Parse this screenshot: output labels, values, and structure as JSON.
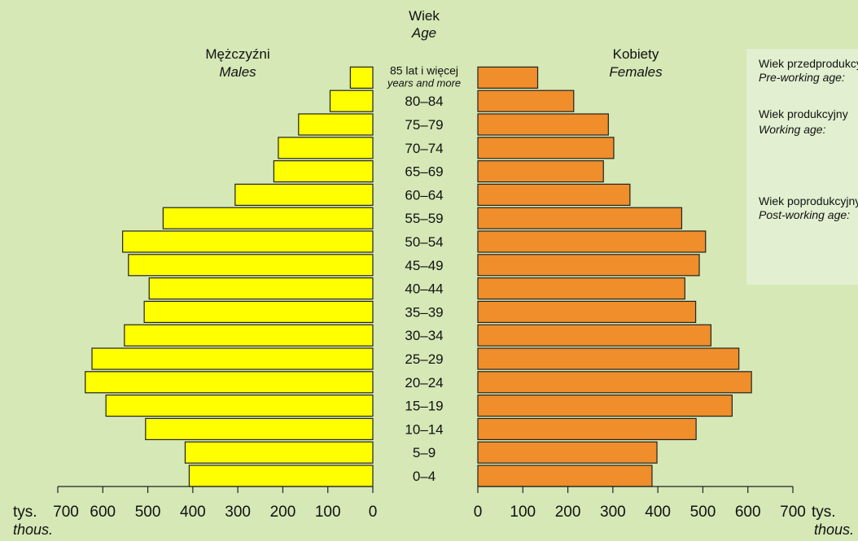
{
  "chart_data": {
    "type": "bar",
    "orientation": "horizontal",
    "subtype": "population-pyramid",
    "title": "Wiek",
    "title_en": "Age",
    "categories": [
      "0–4",
      "5–9",
      "10–14",
      "15–19",
      "20–24",
      "25–29",
      "30–34",
      "35–39",
      "40–44",
      "45–49",
      "50–54",
      "55–59",
      "60–64",
      "65–69",
      "70–74",
      "75–79",
      "80–84",
      "85 lat i więcej"
    ],
    "top_category_en": "years and more",
    "series": [
      {
        "name": "Mężczyźni",
        "name_en": "Males",
        "color": "#ffff00",
        "values": [
          408,
          417,
          505,
          593,
          639,
          624,
          552,
          508,
          497,
          543,
          556,
          466,
          306,
          220,
          210,
          165,
          95,
          50
        ]
      },
      {
        "name": "Kobiety",
        "name_en": "Females",
        "color": "#ef8e2a",
        "values": [
          387,
          398,
          485,
          565,
          608,
          580,
          518,
          484,
          460,
          492,
          506,
          453,
          338,
          279,
          302,
          290,
          213,
          133
        ]
      }
    ],
    "x_ticks": [
      0,
      100,
      200,
      300,
      400,
      500,
      600,
      700
    ],
    "xlim": [
      0,
      700
    ],
    "unit": "tys.",
    "unit_en": "thous."
  },
  "legend": {
    "pre_working": "Wiek przedprodukcyjny",
    "pre_working_en": "Pre-working age:",
    "working": "Wiek produkcyjny",
    "working_en": "Working age:",
    "post_working": "Wiek poprodukcyjny",
    "post_working_en": "Post-working age:"
  },
  "colors": {
    "background": "#d5e8b6",
    "legend_bg": "#e2efd0",
    "bar_stroke": "#222222"
  }
}
